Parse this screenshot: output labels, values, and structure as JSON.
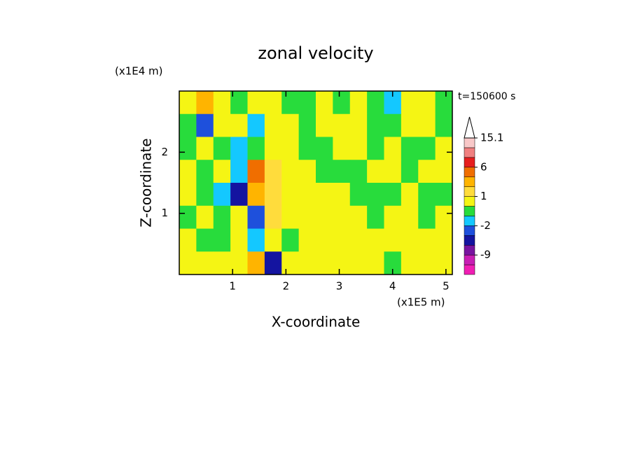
{
  "chart_data": {
    "type": "heatmap",
    "title": "zonal velocity",
    "xlabel": "X-coordinate",
    "ylabel": "Z-coordinate",
    "xunit": "(x1E5 m)",
    "yunit": "(x1E4 m)",
    "time_label": "t=150600 s",
    "xlim": [
      0,
      5.12
    ],
    "ylim": [
      0,
      3.0
    ],
    "xticks": [
      1,
      2,
      3,
      4,
      5
    ],
    "yticks": [
      1,
      2
    ],
    "values": [
      [
        0.5,
        2,
        0.5,
        -0.5,
        0.5,
        0.5,
        -0.5,
        -0.5,
        0.5,
        -0.5,
        0.5,
        -0.5,
        -1.5,
        0.5,
        0.5,
        -0.5
      ],
      [
        -0.5,
        -3,
        0.5,
        0.5,
        -1.5,
        0.5,
        0.5,
        -0.5,
        0.5,
        0.5,
        0.5,
        -0.5,
        -0.5,
        0.5,
        0.5,
        -0.5
      ],
      [
        -0.5,
        0.5,
        -0.5,
        -1.5,
        -0.5,
        0.5,
        0.5,
        -0.5,
        -0.5,
        0.5,
        0.5,
        -0.5,
        0.5,
        -0.5,
        -0.5,
        0.5
      ],
      [
        0.5,
        -0.5,
        0.5,
        -1.5,
        4,
        1.5,
        0.5,
        0.5,
        -0.5,
        -0.5,
        -0.5,
        0.5,
        0.5,
        -0.5,
        0.5,
        0.5
      ],
      [
        0.5,
        -0.5,
        -1.5,
        -5,
        2,
        1.5,
        0.5,
        0.5,
        0.5,
        0.5,
        -0.5,
        -0.5,
        -0.5,
        0.5,
        -0.5,
        -0.5
      ],
      [
        -0.5,
        0.5,
        -0.5,
        0.5,
        -3,
        1.5,
        0.5,
        0.5,
        0.5,
        0.5,
        0.5,
        -0.5,
        0.5,
        0.5,
        -0.5,
        0.5
      ],
      [
        0.5,
        -0.5,
        -0.5,
        0.5,
        -1.5,
        0.5,
        -0.5,
        0.5,
        0.5,
        0.5,
        0.5,
        0.5,
        0.5,
        0.5,
        0.5,
        0.5
      ],
      [
        0.5,
        0.5,
        0.5,
        0.5,
        2,
        -5,
        0.5,
        0.5,
        0.5,
        0.5,
        0.5,
        0.5,
        -0.5,
        0.5,
        0.5,
        0.5
      ]
    ],
    "levels": [
      -15,
      -12,
      -9,
      -6,
      -4,
      -2,
      -1,
      0,
      1,
      2,
      3,
      6,
      9,
      12,
      15.1
    ],
    "colors": [
      "#f01eb4",
      "#c81eb4",
      "#7814a0",
      "#1414a0",
      "#1e50dc",
      "#14c8ff",
      "#28dc3c",
      "#f5f514",
      "#ffdc3c",
      "#ffb400",
      "#f06e00",
      "#e61e1e",
      "#f08080",
      "#f8c8c8"
    ],
    "colorbar_ticks": [
      15.1,
      6,
      1,
      -2,
      -9
    ]
  }
}
